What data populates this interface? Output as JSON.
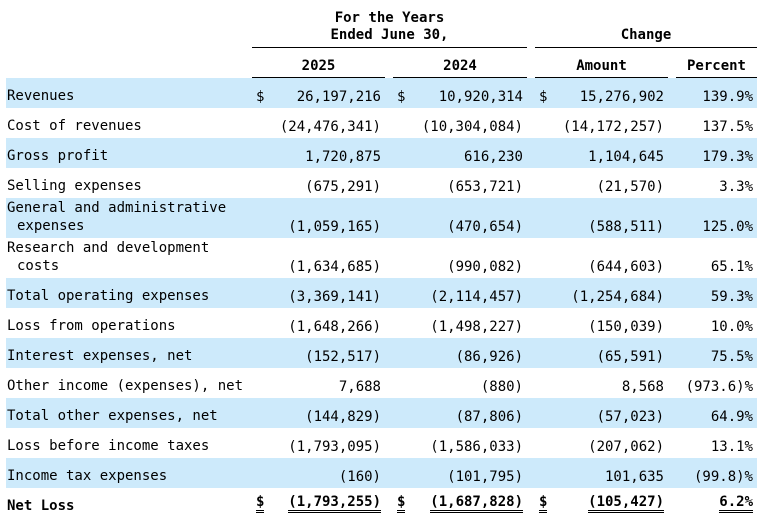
{
  "header": {
    "group_years": "For the Years Ended June 30,",
    "group_change": "Change",
    "columns": [
      "2025",
      "2024",
      "Amount",
      "Percent"
    ]
  },
  "table": {
    "rows": [
      {
        "label": "Revenues",
        "cells": [
          {
            "prefix": "$",
            "text": "26,197,216"
          },
          {
            "prefix": "$",
            "text": "10,920,314"
          },
          {
            "prefix": "$",
            "text": "15,276,902"
          },
          {
            "text": "139.9%"
          }
        ]
      },
      {
        "label": "Cost of revenues",
        "cells": [
          {
            "text": "(24,476,341)"
          },
          {
            "text": "(10,304,084)"
          },
          {
            "text": "(14,172,257)"
          },
          {
            "text": "137.5%"
          }
        ]
      },
      {
        "label": "Gross profit",
        "cells": [
          {
            "text": "1,720,875"
          },
          {
            "text": "616,230"
          },
          {
            "text": "1,104,645"
          },
          {
            "text": "179.3%"
          }
        ]
      },
      {
        "label": "Selling expenses",
        "cells": [
          {
            "text": "(675,291)"
          },
          {
            "text": "(653,721)"
          },
          {
            "text": "(21,570)"
          },
          {
            "text": "3.3%"
          }
        ]
      },
      {
        "label": "General and administrative expenses",
        "cells": [
          {
            "text": "(1,059,165)"
          },
          {
            "text": "(470,654)"
          },
          {
            "text": "(588,511)"
          },
          {
            "text": "125.0%"
          }
        ]
      },
      {
        "label": "Research and development costs",
        "cells": [
          {
            "text": "(1,634,685)"
          },
          {
            "text": "(990,082)"
          },
          {
            "text": "(644,603)"
          },
          {
            "text": "65.1%"
          }
        ]
      },
      {
        "label": "Total operating expenses",
        "cells": [
          {
            "text": "(3,369,141)"
          },
          {
            "text": "(2,114,457)"
          },
          {
            "text": "(1,254,684)"
          },
          {
            "text": "59.3%"
          }
        ]
      },
      {
        "label": "Loss from operations",
        "cells": [
          {
            "text": "(1,648,266)"
          },
          {
            "text": "(1,498,227)"
          },
          {
            "text": "(150,039)"
          },
          {
            "text": "10.0%"
          }
        ]
      },
      {
        "label": "Interest expenses, net",
        "cells": [
          {
            "text": "(152,517)"
          },
          {
            "text": "(86,926)"
          },
          {
            "text": "(65,591)"
          },
          {
            "text": "75.5%"
          }
        ]
      },
      {
        "label": "Other income (expenses), net",
        "cells": [
          {
            "text": "7,688"
          },
          {
            "text": "(880)"
          },
          {
            "text": "8,568"
          },
          {
            "text": "(973.6)%"
          }
        ]
      },
      {
        "label": "Total other expenses, net",
        "cells": [
          {
            "text": "(144,829)"
          },
          {
            "text": "(87,806)"
          },
          {
            "text": "(57,023)"
          },
          {
            "text": "64.9%"
          }
        ]
      },
      {
        "label": "Loss before income taxes",
        "cells": [
          {
            "text": "(1,793,095)"
          },
          {
            "text": "(1,586,033)"
          },
          {
            "text": "(207,062)"
          },
          {
            "text": "13.1%"
          }
        ]
      },
      {
        "label": "Income tax expenses",
        "cells": [
          {
            "text": "(160)"
          },
          {
            "text": "(101,795)"
          },
          {
            "text": "101,635"
          },
          {
            "text": "(99.8)%"
          }
        ]
      },
      {
        "label": "Net Loss",
        "cells": [
          {
            "prefix": "$",
            "text": "(1,793,255)"
          },
          {
            "prefix": "$",
            "text": "(1,687,828)"
          },
          {
            "prefix": "$",
            "text": "(105,427)"
          },
          {
            "text": "6.2%"
          }
        ]
      }
    ]
  }
}
